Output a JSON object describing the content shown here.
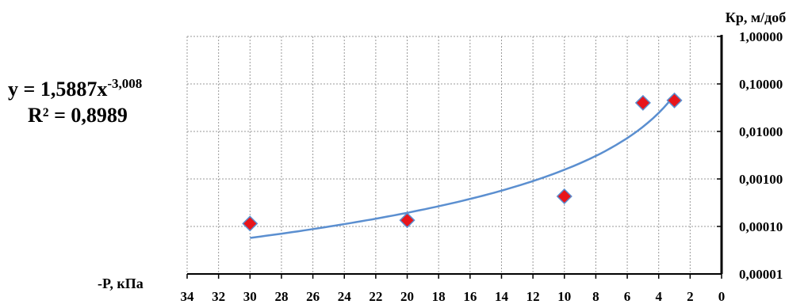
{
  "chart_data": {
    "type": "scatter",
    "ylabel": "Кр, м/доб",
    "xlabel": "-P, кПа",
    "x_axis": {
      "reversed": true,
      "min": 0,
      "max": 34,
      "step": 2,
      "tick_labels": [
        "34",
        "32",
        "30",
        "28",
        "26",
        "24",
        "22",
        "20",
        "18",
        "16",
        "14",
        "12",
        "10",
        "8",
        "6",
        "4",
        "2",
        "0"
      ]
    },
    "y_axis": {
      "scale": "log",
      "min": 1e-05,
      "max": 1,
      "tick_labels": [
        "0,00001",
        "0,00010",
        "0,00100",
        "0,01000",
        "0,10000",
        "1,00000"
      ]
    },
    "grid": true,
    "series": [
      {
        "marker": "diamond",
        "color": "#e8151b",
        "edge": "#5b8fd0",
        "points": [
          {
            "x": 30,
            "y": 0.000115
          },
          {
            "x": 20,
            "y": 0.000135
          },
          {
            "x": 10,
            "y": 0.00043
          },
          {
            "x": 5,
            "y": 0.04
          },
          {
            "x": 3,
            "y": 0.045
          }
        ]
      }
    ],
    "trendline": {
      "type": "power",
      "a": 1.5887,
      "b": -3.008,
      "x_from": 30,
      "x_to": 3,
      "color": "#5b8fd0",
      "equation_base": "y = 1,5887x",
      "equation_exponent": "-3,008",
      "r2_text": "R² = 0,8989"
    }
  }
}
